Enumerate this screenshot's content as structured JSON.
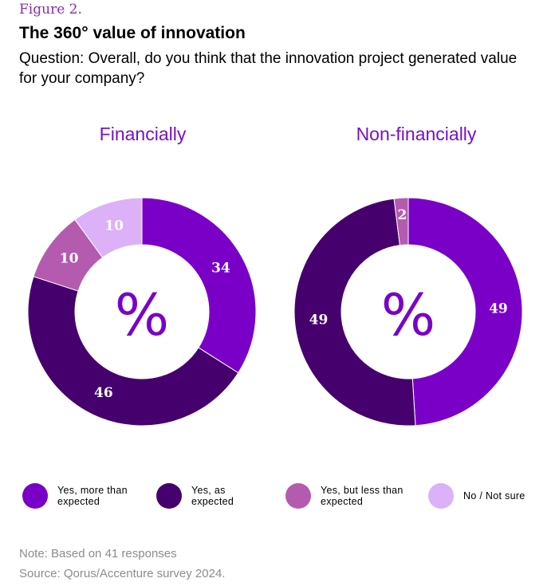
{
  "figure_label": "Figure 2.",
  "title": "The 360° value of innovation",
  "question": "Question: Overall, do you think that the innovation project generated value for your company?",
  "center_symbol": "%",
  "colors": {
    "yes_more": "#7a00c8",
    "yes_expected": "#46006e",
    "yes_less": "#b45bb0",
    "not_sure": "#dcb1f7",
    "title_purple": "#7a10c4"
  },
  "legend": [
    {
      "label": "Yes, more than expected",
      "color": "#7a00c8"
    },
    {
      "label": "Yes, as expected",
      "color": "#46006e"
    },
    {
      "label": "Yes, but less than expected",
      "color": "#b45bb0"
    },
    {
      "label": "No / Not sure",
      "color": "#dcb1f7"
    }
  ],
  "chart_data": [
    {
      "type": "pie",
      "title": "Financially",
      "categories": [
        "Yes, more than expected",
        "Yes, as expected",
        "Yes, but less than expected",
        "No / Not sure"
      ],
      "values": [
        34,
        46,
        10,
        10
      ],
      "unit": "%"
    },
    {
      "type": "pie",
      "title": "Non-financially",
      "categories": [
        "Yes, more than expected",
        "Yes, as expected",
        "Yes, but less than expected",
        "No / Not sure"
      ],
      "values": [
        49,
        49,
        2,
        0
      ],
      "unit": "%"
    }
  ],
  "note": "Note: Based on 41 responses",
  "source": "Source:  Qorus/Accenture  survey  2024."
}
